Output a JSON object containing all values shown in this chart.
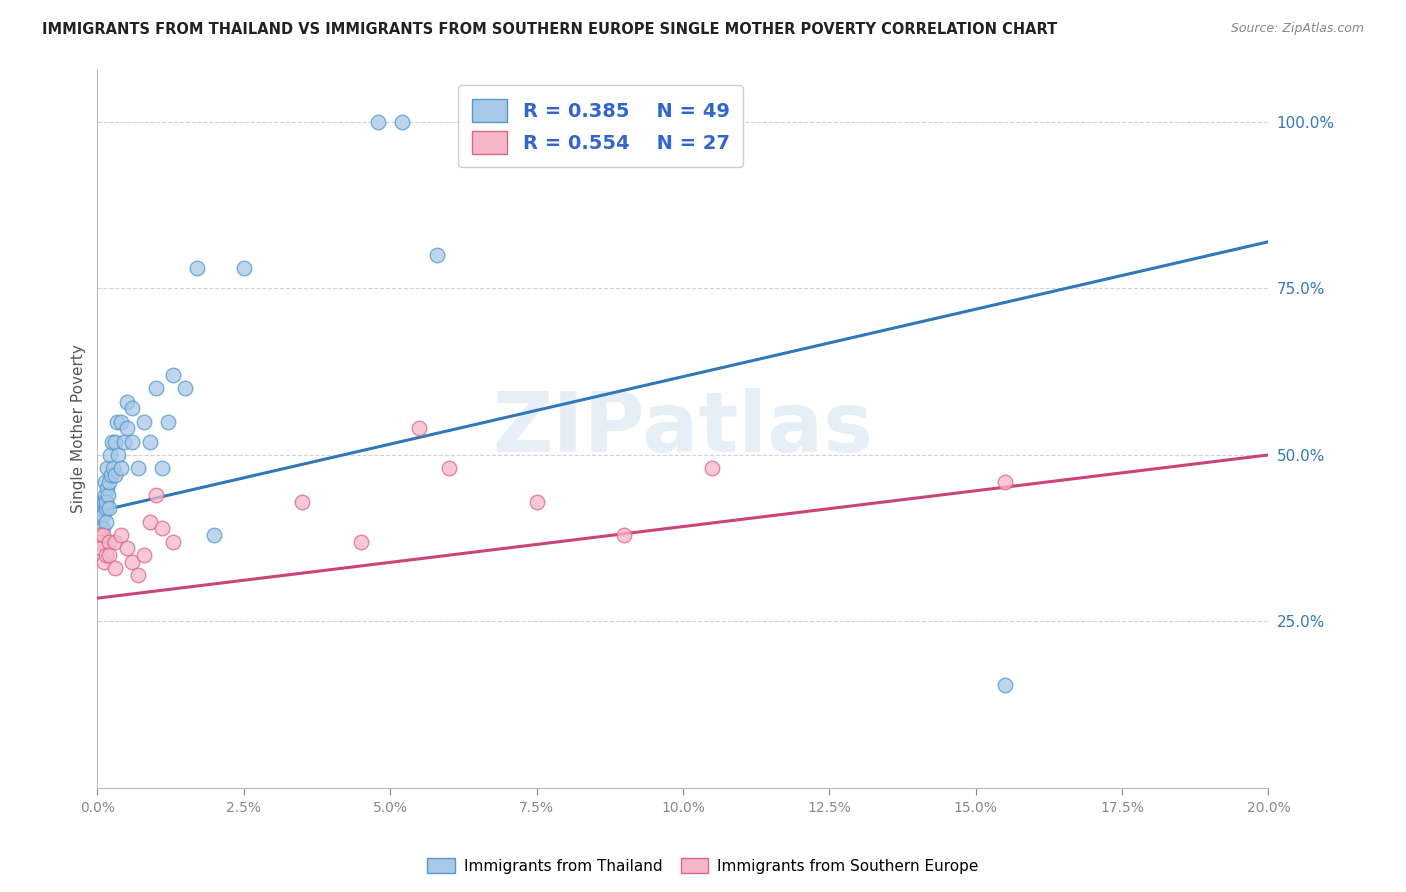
{
  "title": "IMMIGRANTS FROM THAILAND VS IMMIGRANTS FROM SOUTHERN EUROPE SINGLE MOTHER POVERTY CORRELATION CHART",
  "source": "Source: ZipAtlas.com",
  "ylabel": "Single Mother Poverty",
  "legend_blue_r": "0.385",
  "legend_blue_n": "49",
  "legend_pink_r": "0.554",
  "legend_pink_n": "27",
  "watermark": "ZIPatlas",
  "blue_color": "#a8c8e8",
  "blue_edge_color": "#5599cc",
  "blue_line_color": "#3377bb",
  "pink_color": "#f5b8c8",
  "pink_edge_color": "#dd6688",
  "pink_line_color": "#cc4477",
  "legend_text_color": "#3366cc",
  "background_color": "#ffffff",
  "grid_color": "#cccccc",
  "title_color": "#222222",
  "right_tick_color": "#3377bb",
  "blue_scatter_x": [
    0.0004,
    0.0005,
    0.0006,
    0.0007,
    0.0008,
    0.0009,
    0.001,
    0.001,
    0.0012,
    0.0013,
    0.0013,
    0.0014,
    0.0015,
    0.0015,
    0.0016,
    0.0017,
    0.0018,
    0.002,
    0.002,
    0.0022,
    0.0023,
    0.0025,
    0.0027,
    0.003,
    0.003,
    0.0033,
    0.0035,
    0.004,
    0.004,
    0.0045,
    0.005,
    0.005,
    0.006,
    0.006,
    0.007,
    0.008,
    0.009,
    0.01,
    0.011,
    0.012,
    0.013,
    0.015,
    0.017,
    0.02,
    0.025,
    0.048,
    0.052,
    0.058,
    0.155
  ],
  "blue_scatter_y": [
    0.38,
    0.4,
    0.39,
    0.42,
    0.43,
    0.41,
    0.37,
    0.39,
    0.43,
    0.44,
    0.46,
    0.42,
    0.4,
    0.43,
    0.45,
    0.48,
    0.44,
    0.42,
    0.46,
    0.5,
    0.47,
    0.52,
    0.48,
    0.47,
    0.52,
    0.55,
    0.5,
    0.48,
    0.55,
    0.52,
    0.58,
    0.54,
    0.52,
    0.57,
    0.48,
    0.55,
    0.52,
    0.6,
    0.48,
    0.55,
    0.62,
    0.6,
    0.78,
    0.38,
    0.78,
    1.0,
    1.0,
    0.8,
    0.155
  ],
  "pink_scatter_x": [
    0.0003,
    0.0005,
    0.0007,
    0.001,
    0.0012,
    0.0015,
    0.002,
    0.002,
    0.003,
    0.003,
    0.004,
    0.005,
    0.006,
    0.007,
    0.008,
    0.009,
    0.01,
    0.011,
    0.013,
    0.035,
    0.045,
    0.055,
    0.06,
    0.075,
    0.09,
    0.105,
    0.155
  ],
  "pink_scatter_y": [
    0.38,
    0.37,
    0.36,
    0.38,
    0.34,
    0.35,
    0.37,
    0.35,
    0.37,
    0.33,
    0.38,
    0.36,
    0.34,
    0.32,
    0.35,
    0.4,
    0.44,
    0.39,
    0.37,
    0.43,
    0.37,
    0.54,
    0.48,
    0.43,
    0.38,
    0.48,
    0.46
  ],
  "xmin": 0.0,
  "xmax": 0.2,
  "ymin": 0.0,
  "ymax": 1.08,
  "blue_line_x0": 0.0,
  "blue_line_y0": 0.415,
  "blue_line_x1": 0.2,
  "blue_line_y1": 0.82,
  "pink_line_x0": 0.0,
  "pink_line_y0": 0.285,
  "pink_line_x1": 0.2,
  "pink_line_y1": 0.5
}
